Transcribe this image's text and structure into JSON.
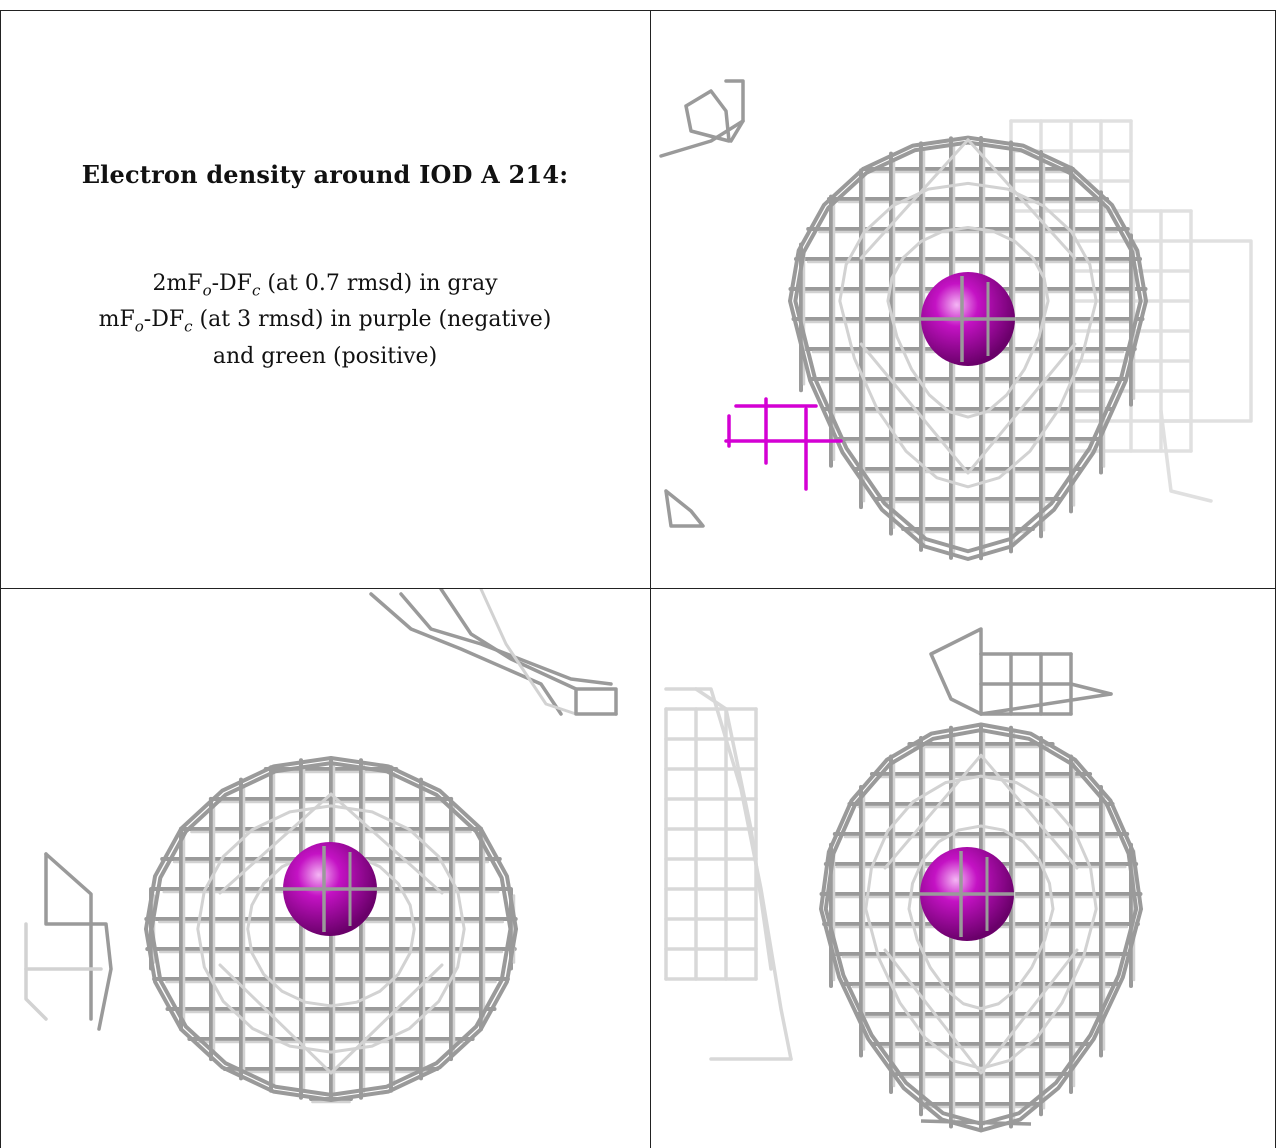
{
  "caption": {
    "title": "Electron density around IOD A 214:",
    "line1_parts": [
      "2mF",
      "o",
      "-DF",
      "c",
      " (at 0.7 rmsd) in gray"
    ],
    "line2_parts": [
      "mF",
      "o",
      "-DF",
      "c",
      " (at 3 rmsd) in purple (negative)"
    ],
    "line3": "and green (positive)"
  },
  "colors": {
    "mesh_gray": "#9a9a9a",
    "mesh_light": "#d2d2d2",
    "atom_magenta": "#c412c4",
    "negative_purple": "#d400d4"
  },
  "panels": [
    {
      "name": "top-right-view"
    },
    {
      "name": "bottom-left-view"
    },
    {
      "name": "bottom-right-view"
    }
  ]
}
